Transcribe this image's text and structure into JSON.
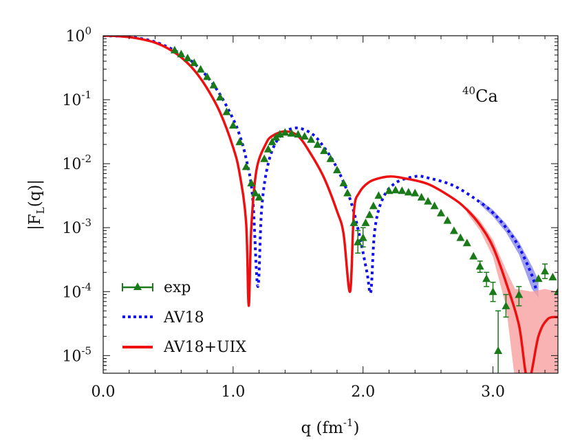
{
  "chart_data": {
    "type": "line",
    "title": "",
    "xlabel": "q (fm",
    "xlabel_sup": "-1",
    "xlabel_end": ")",
    "ylabel": "|F",
    "ylabel_sub": "L",
    "ylabel_end": "(q)|",
    "xlim": [
      0,
      3.5
    ],
    "ylim": [
      5.3e-06,
      1
    ],
    "yscale": "log",
    "xticks": [
      0.0,
      1.0,
      2.0,
      3.0
    ],
    "xtick_labels": [
      "0.0",
      "1.0",
      "2.0",
      "3.0"
    ],
    "yticks": [
      1,
      0.1,
      0.01,
      0.001,
      0.0001,
      1e-05
    ],
    "ytick_base": "10",
    "ytick_exps": [
      "0",
      "-1",
      "-2",
      "-3",
      "-4",
      "-5"
    ],
    "annotation": {
      "sup": "40",
      "text": "Ca"
    },
    "legend_position": "bottom-left",
    "grid": false,
    "series": [
      {
        "name": "exp",
        "color": "#1a7a1a",
        "style": "triangles",
        "points": [
          [
            0.55,
            0.6
          ],
          [
            0.6,
            0.52
          ],
          [
            0.65,
            0.45
          ],
          [
            0.7,
            0.38
          ],
          [
            0.75,
            0.3
          ],
          [
            0.8,
            0.23
          ],
          [
            0.85,
            0.17
          ],
          [
            0.9,
            0.11
          ],
          [
            0.95,
            0.065
          ],
          [
            1.0,
            0.04
          ],
          [
            1.05,
            0.022
          ],
          [
            1.1,
            0.009
          ],
          [
            1.14,
            0.005
          ],
          [
            1.17,
            0.0035
          ],
          [
            1.2,
            0.003
          ],
          [
            1.24,
            0.012
          ],
          [
            1.27,
            0.017
          ],
          [
            1.3,
            0.022
          ],
          [
            1.33,
            0.026
          ],
          [
            1.36,
            0.029
          ],
          [
            1.4,
            0.031
          ],
          [
            1.45,
            0.03
          ],
          [
            1.5,
            0.029
          ],
          [
            1.55,
            0.027
          ],
          [
            1.6,
            0.024
          ],
          [
            1.65,
            0.02
          ],
          [
            1.7,
            0.016
          ],
          [
            1.75,
            0.012
          ],
          [
            1.8,
            0.008
          ],
          [
            1.85,
            0.005
          ],
          [
            1.88,
            0.0035
          ],
          [
            1.93,
            0.0012
          ],
          [
            1.96,
            0.0006
          ],
          [
            2.0,
            0.0007
          ],
          [
            2.02,
            0.0012
          ],
          [
            2.05,
            0.0016
          ],
          [
            2.08,
            0.0022
          ],
          [
            2.12,
            0.0032
          ],
          [
            2.2,
            0.0038
          ],
          [
            2.25,
            0.0039
          ],
          [
            2.3,
            0.0038
          ],
          [
            2.35,
            0.0036
          ],
          [
            2.4,
            0.0035
          ],
          [
            2.45,
            0.003
          ],
          [
            2.5,
            0.0026
          ],
          [
            2.55,
            0.0022
          ],
          [
            2.6,
            0.0017
          ],
          [
            2.65,
            0.0013
          ],
          [
            2.7,
            0.0009
          ],
          [
            2.75,
            0.0007
          ],
          [
            2.8,
            0.00058
          ],
          [
            2.85,
            0.00036
          ],
          [
            2.9,
            0.00025
          ],
          [
            2.95,
            0.00016
          ],
          [
            3.0,
            0.0001
          ],
          [
            3.04,
            1.2e-05
          ],
          [
            3.1,
            6e-05
          ],
          [
            3.2,
            9e-05
          ],
          [
            3.35,
            0.00016
          ],
          [
            3.4,
            0.00021
          ],
          [
            3.46,
            0.00017
          ],
          [
            3.5,
            0.0001
          ]
        ],
        "errors": [
          [
            1.96,
            0.0004,
            0.0009
          ],
          [
            2.0,
            0.0005,
            0.001
          ],
          [
            2.9,
            0.0002,
            0.0003
          ],
          [
            2.95,
            0.00012,
            0.0002
          ],
          [
            3.0,
            7e-05,
            0.00014
          ],
          [
            3.04,
            2.5e-06,
            5e-05
          ],
          [
            3.1,
            4e-05,
            9e-05
          ],
          [
            3.2,
            6e-05,
            0.00012
          ],
          [
            3.4,
            0.00016,
            0.00027
          ]
        ]
      },
      {
        "name": "AV18",
        "color": "#1010ee",
        "band_color": "#8888ee",
        "style": "dotted",
        "points": [
          [
            0,
            1
          ],
          [
            0.2,
            0.96
          ],
          [
            0.4,
            0.8
          ],
          [
            0.6,
            0.52
          ],
          [
            0.7,
            0.37
          ],
          [
            0.8,
            0.23
          ],
          [
            0.9,
            0.12
          ],
          [
            1.0,
            0.05
          ],
          [
            1.05,
            0.028
          ],
          [
            1.1,
            0.012
          ],
          [
            1.15,
            0.003
          ],
          [
            1.19,
            0.00012
          ],
          [
            1.22,
            0.002
          ],
          [
            1.27,
            0.01
          ],
          [
            1.35,
            0.025
          ],
          [
            1.47,
            0.036
          ],
          [
            1.6,
            0.03
          ],
          [
            1.7,
            0.018
          ],
          [
            1.8,
            0.0085
          ],
          [
            1.9,
            0.0028
          ],
          [
            1.97,
            0.0008
          ],
          [
            2.03,
            0.0002
          ],
          [
            2.06,
            0.0001
          ],
          [
            2.09,
            0.0009
          ],
          [
            2.15,
            0.0028
          ],
          [
            2.25,
            0.005
          ],
          [
            2.4,
            0.0063
          ],
          [
            2.5,
            0.006
          ],
          [
            2.7,
            0.0045
          ],
          [
            2.9,
            0.0025
          ],
          [
            3.0,
            0.0017
          ],
          [
            3.1,
            0.001
          ],
          [
            3.2,
            0.0005
          ],
          [
            3.3,
            0.00018
          ],
          [
            3.33,
            0.00011
          ]
        ],
        "band": [
          [
            2.9,
            0.0023,
            0.0027
          ],
          [
            3.0,
            0.0015,
            0.0019
          ],
          [
            3.1,
            0.00085,
            0.00115
          ],
          [
            3.2,
            0.00038,
            0.0006
          ],
          [
            3.3,
            0.00011,
            0.00025
          ],
          [
            3.35,
            8e-05,
            0.00015
          ]
        ]
      },
      {
        "name": "AV18+UIX",
        "color": "#ee1010",
        "band_color": "#f8a0a0",
        "style": "solid",
        "points": [
          [
            0,
            1
          ],
          [
            0.1,
            0.99
          ],
          [
            0.2,
            0.95
          ],
          [
            0.3,
            0.88
          ],
          [
            0.4,
            0.78
          ],
          [
            0.5,
            0.63
          ],
          [
            0.6,
            0.46
          ],
          [
            0.7,
            0.29
          ],
          [
            0.8,
            0.15
          ],
          [
            0.9,
            0.063
          ],
          [
            1.0,
            0.018
          ],
          [
            1.05,
            0.007
          ],
          [
            1.1,
            0.0012
          ],
          [
            1.12,
            6e-05
          ],
          [
            1.14,
            0.001
          ],
          [
            1.18,
            0.008
          ],
          [
            1.25,
            0.02
          ],
          [
            1.3,
            0.027
          ],
          [
            1.4,
            0.032
          ],
          [
            1.5,
            0.027
          ],
          [
            1.6,
            0.014
          ],
          [
            1.7,
            0.006
          ],
          [
            1.8,
            0.0018
          ],
          [
            1.85,
            0.0008
          ],
          [
            1.9,
            0.0001
          ],
          [
            1.93,
            0.0018
          ],
          [
            1.97,
            0.0035
          ],
          [
            2.05,
            0.0052
          ],
          [
            2.15,
            0.0061
          ],
          [
            2.22,
            0.0063
          ],
          [
            2.3,
            0.006
          ],
          [
            2.5,
            0.0048
          ],
          [
            2.7,
            0.0028
          ],
          [
            2.8,
            0.0019
          ],
          [
            2.9,
            0.0011
          ],
          [
            3.0,
            0.0005
          ],
          [
            3.1,
            0.00014
          ],
          [
            3.2,
            3e-05
          ],
          [
            3.27,
            4e-06
          ],
          [
            3.35,
            2e-05
          ],
          [
            3.42,
            3.7e-05
          ],
          [
            3.5,
            4e-05
          ]
        ],
        "band": [
          [
            2.8,
            0.0017,
            0.0021
          ],
          [
            2.9,
            0.0009,
            0.0013
          ],
          [
            3.0,
            0.00035,
            0.00065
          ],
          [
            3.1,
            6e-05,
            0.00022
          ],
          [
            3.17,
            4e-06,
            0.00011
          ],
          [
            3.3,
            4e-06,
            0.0001
          ],
          [
            3.4,
            4e-06,
            0.00011
          ],
          [
            3.5,
            4e-06,
            0.0001
          ]
        ]
      }
    ]
  }
}
